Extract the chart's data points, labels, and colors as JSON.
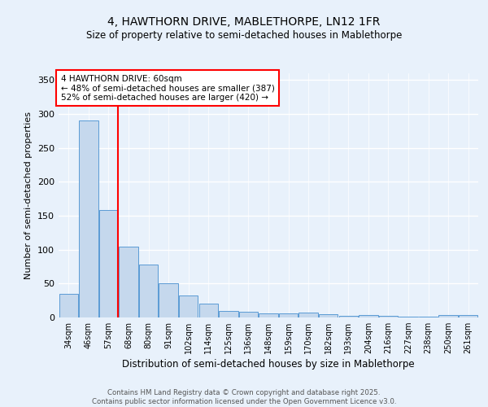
{
  "title1": "4, HAWTHORN DRIVE, MABLETHORPE, LN12 1FR",
  "title2": "Size of property relative to semi-detached houses in Mablethorpe",
  "xlabel": "Distribution of semi-detached houses by size in Mablethorpe",
  "ylabel": "Number of semi-detached properties",
  "categories": [
    "34sqm",
    "46sqm",
    "57sqm",
    "68sqm",
    "80sqm",
    "91sqm",
    "102sqm",
    "114sqm",
    "125sqm",
    "136sqm",
    "148sqm",
    "159sqm",
    "170sqm",
    "182sqm",
    "193sqm",
    "204sqm",
    "216sqm",
    "227sqm",
    "238sqm",
    "250sqm",
    "261sqm"
  ],
  "values": [
    35,
    290,
    158,
    104,
    78,
    50,
    33,
    21,
    10,
    8,
    6,
    6,
    7,
    5,
    3,
    4,
    3,
    1,
    1,
    4,
    4
  ],
  "bar_color": "#c5d8ed",
  "bar_edge_color": "#5b9bd5",
  "vline_color": "red",
  "annotation_title": "4 HAWTHORN DRIVE: 60sqm",
  "annotation_line1": "← 48% of semi-detached houses are smaller (387)",
  "annotation_line2": "52% of semi-detached houses are larger (420) →",
  "annotation_box_color": "white",
  "annotation_box_edge": "red",
  "ylim": [
    0,
    360
  ],
  "yticks": [
    0,
    50,
    100,
    150,
    200,
    250,
    300,
    350
  ],
  "footer1": "Contains HM Land Registry data © Crown copyright and database right 2025.",
  "footer2": "Contains public sector information licensed under the Open Government Licence v3.0.",
  "bg_color": "#e8f1fb"
}
